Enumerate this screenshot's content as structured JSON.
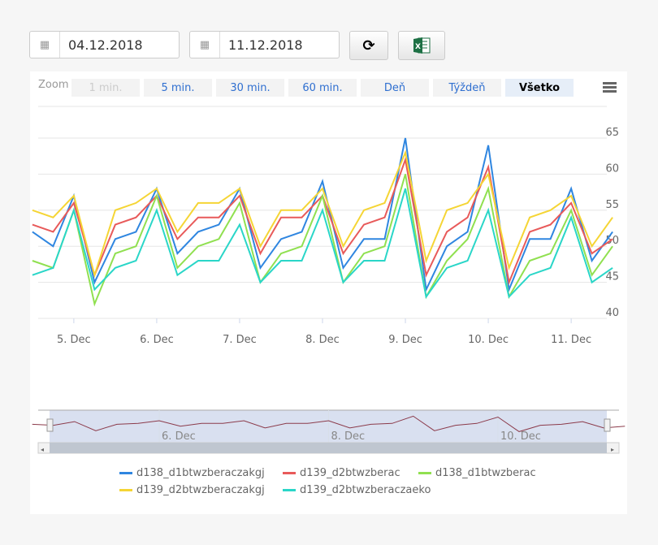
{
  "toolbar": {
    "date_from": "04.12.2018",
    "date_to": "11.12.2018",
    "calendar_icon": "calendar-icon",
    "refresh_icon": "refresh-icon",
    "excel_icon": "excel-icon"
  },
  "zoom": {
    "label": "Zoom",
    "buttons": [
      "1 min.",
      "5 min.",
      "30 min.",
      "60 min.",
      "Deň",
      "Týždeň",
      "Všetko"
    ],
    "selected": "Všetko",
    "disabled": "1 min."
  },
  "chart_data": {
    "type": "line",
    "ylim": [
      40,
      65
    ],
    "y_ticks": [
      "40",
      "45",
      "50",
      "55",
      "60",
      "65"
    ],
    "x_ticks": [
      "5. Dec",
      "6. Dec",
      "7. Dec",
      "8. Dec",
      "9. Dec",
      "10. Dec",
      "11. Dec"
    ],
    "grid": true,
    "legend_placement": "bottom",
    "x": [
      "2018-12-04 12:00",
      "2018-12-04 18:00",
      "2018-12-05 00:00",
      "2018-12-05 06:00",
      "2018-12-05 12:00",
      "2018-12-05 18:00",
      "2018-12-06 00:00",
      "2018-12-06 06:00",
      "2018-12-06 12:00",
      "2018-12-06 18:00",
      "2018-12-07 00:00",
      "2018-12-07 06:00",
      "2018-12-07 12:00",
      "2018-12-07 18:00",
      "2018-12-08 00:00",
      "2018-12-08 06:00",
      "2018-12-08 12:00",
      "2018-12-08 18:00",
      "2018-12-09 00:00",
      "2018-12-09 06:00",
      "2018-12-09 12:00",
      "2018-12-09 18:00",
      "2018-12-10 00:00",
      "2018-12-10 06:00",
      "2018-12-10 12:00",
      "2018-12-10 18:00",
      "2018-12-11 00:00",
      "2018-12-11 06:00",
      "2018-12-11 12:00"
    ],
    "series": [
      {
        "name": "d138_d1btwzberaczakgj",
        "color": "#2f86e0",
        "values": [
          52,
          50,
          57,
          45,
          51,
          52,
          58,
          49,
          52,
          53,
          58,
          47,
          51,
          52,
          59,
          47,
          51,
          51,
          65,
          44,
          50,
          52,
          64,
          44,
          51,
          51,
          58,
          48,
          52
        ]
      },
      {
        "name": "d139_d2btwzberac",
        "color": "#e85a5a",
        "values": [
          53,
          52,
          56,
          46,
          53,
          54,
          57,
          51,
          54,
          54,
          57,
          49,
          54,
          54,
          57,
          49,
          53,
          54,
          62,
          46,
          52,
          54,
          61,
          45,
          52,
          53,
          56,
          49,
          51
        ]
      },
      {
        "name": "d138_d1btwzberac",
        "color": "#90e050",
        "values": [
          48,
          47,
          55,
          42,
          49,
          50,
          57,
          47,
          50,
          51,
          56,
          45,
          49,
          50,
          57,
          45,
          49,
          50,
          60,
          43,
          48,
          51,
          58,
          43,
          48,
          49,
          55,
          46,
          50
        ]
      },
      {
        "name": "d139_d2btwzberaczakgj",
        "color": "#f5d535",
        "values": [
          55,
          54,
          57,
          46,
          55,
          56,
          58,
          52,
          56,
          56,
          58,
          50,
          55,
          55,
          58,
          50,
          55,
          56,
          63,
          48,
          55,
          56,
          60,
          47,
          54,
          55,
          57,
          50,
          54
        ]
      },
      {
        "name": "d139_d2btwzberaczaeko",
        "color": "#2ad6c8",
        "values": [
          46,
          47,
          55,
          44,
          47,
          48,
          55,
          46,
          48,
          48,
          53,
          45,
          48,
          48,
          55,
          45,
          48,
          48,
          58,
          43,
          47,
          48,
          55,
          43,
          46,
          47,
          54,
          45,
          47
        ]
      }
    ],
    "navigator": {
      "x_ticks": [
        "6. Dec",
        "8. Dec",
        "10. Dec"
      ]
    }
  }
}
